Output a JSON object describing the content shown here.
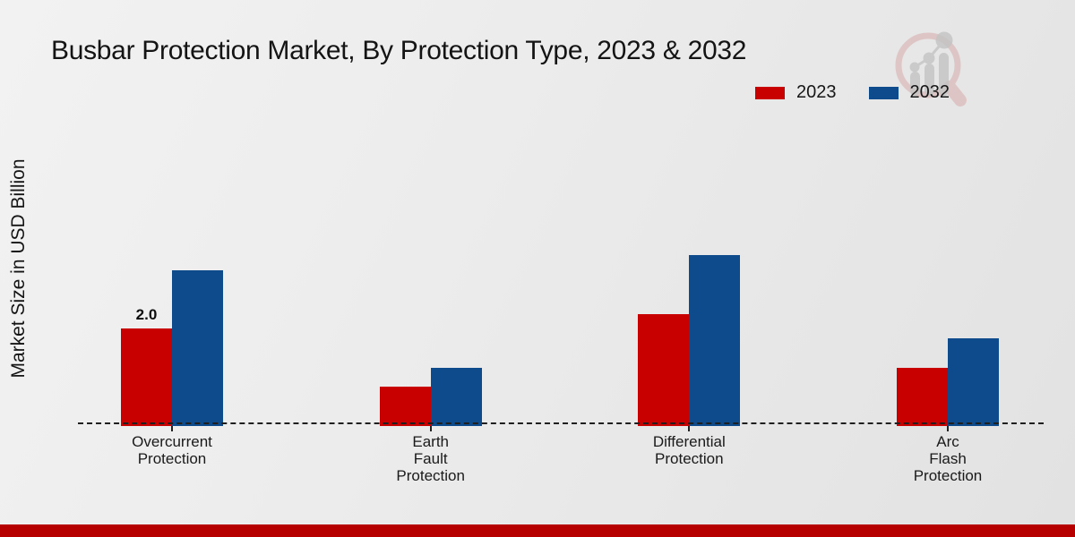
{
  "header": {
    "title": "Busbar Protection Market, By Protection Type, 2023 & 2032"
  },
  "watermark": {
    "icon": "magnifier-growth-chart-logo"
  },
  "colors": {
    "series_2023": "#c80000",
    "series_2032": "#0d4b8c",
    "footer_bar": "#b60000",
    "dashed_axis": "#1f1f1f",
    "background": "#ebebeb"
  },
  "chart_data": {
    "type": "bar",
    "title": "Busbar Protection Market, By Protection Type, 2023 & 2032",
    "ylabel": "Market Size in USD Billion",
    "xlabel": "",
    "categories": [
      "Overcurrent\nProtection",
      "Earth\nFault\nProtection",
      "Differential\nProtection",
      "Arc\nFlash\nProtection"
    ],
    "series": [
      {
        "name": "2023",
        "color": "#c80000",
        "values": [
          2.0,
          0.8,
          2.3,
          1.2
        ]
      },
      {
        "name": "2032",
        "color": "#0d4b8c",
        "values": [
          3.2,
          1.2,
          3.5,
          1.8
        ]
      }
    ],
    "bar_labels": [
      {
        "series": "2023",
        "category_index": 0,
        "text": "2.0"
      }
    ],
    "ylim": [
      0,
      6
    ],
    "grid": false,
    "y_axis_ticks_visible": false,
    "baseline_style": "dashed",
    "legend_position": "top-right"
  }
}
